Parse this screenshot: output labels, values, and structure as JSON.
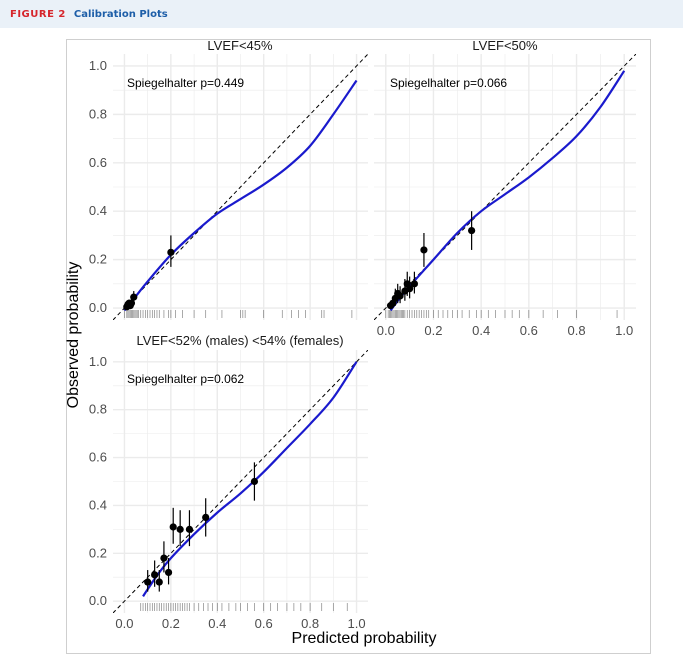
{
  "header": {
    "figure_label": "FIGURE 2",
    "title": "Calibration Plots"
  },
  "chart_data": [
    {
      "type": "scatter",
      "title": "LVEF<45%",
      "annotation": "Spiegelhalter p=0.449",
      "xlim": [
        0,
        1
      ],
      "ylim": [
        0,
        1
      ],
      "x_ticks": [],
      "y_ticks": [
        "0.0",
        "0.2",
        "0.4",
        "0.6",
        "0.8",
        "1.0"
      ],
      "points": [
        {
          "x": 0.01,
          "y": 0.005,
          "lo": 0.0,
          "hi": 0.02
        },
        {
          "x": 0.015,
          "y": 0.015,
          "lo": 0.0,
          "hi": 0.03
        },
        {
          "x": 0.02,
          "y": 0.02,
          "lo": 0.0,
          "hi": 0.035
        },
        {
          "x": 0.025,
          "y": 0.01,
          "lo": 0.0,
          "hi": 0.03
        },
        {
          "x": 0.03,
          "y": 0.02,
          "lo": 0.005,
          "hi": 0.04
        },
        {
          "x": 0.04,
          "y": 0.045,
          "lo": 0.02,
          "hi": 0.07
        },
        {
          "x": 0.2,
          "y": 0.23,
          "lo": 0.17,
          "hi": 0.3
        }
      ],
      "smooth": [
        [
          0.0,
          -0.01
        ],
        [
          0.05,
          0.05
        ],
        [
          0.1,
          0.11
        ],
        [
          0.2,
          0.22
        ],
        [
          0.3,
          0.31
        ],
        [
          0.4,
          0.39
        ],
        [
          0.5,
          0.45
        ],
        [
          0.6,
          0.51
        ],
        [
          0.7,
          0.58
        ],
        [
          0.8,
          0.67
        ],
        [
          0.9,
          0.8
        ],
        [
          1.0,
          0.94
        ]
      ],
      "rug": [
        0.0,
        0.01,
        0.015,
        0.02,
        0.025,
        0.03,
        0.035,
        0.04,
        0.045,
        0.05,
        0.055,
        0.06,
        0.07,
        0.08,
        0.09,
        0.1,
        0.11,
        0.12,
        0.13,
        0.14,
        0.15,
        0.17,
        0.19,
        0.2,
        0.22,
        0.25,
        0.3,
        0.35,
        0.42,
        0.5,
        0.51,
        0.52,
        0.6,
        0.68,
        0.72,
        0.75,
        0.78,
        0.85,
        0.86,
        0.98
      ]
    },
    {
      "type": "scatter",
      "title": "LVEF<50%",
      "annotation": "Spiegelhalter p=0.066",
      "xlim": [
        0,
        1
      ],
      "ylim": [
        0,
        1
      ],
      "x_ticks": [
        "0.0",
        "0.2",
        "0.4",
        "0.6",
        "0.8",
        "1.0"
      ],
      "y_ticks": [],
      "points": [
        {
          "x": 0.02,
          "y": 0.01,
          "lo": 0.0,
          "hi": 0.03
        },
        {
          "x": 0.03,
          "y": 0.02,
          "lo": 0.0,
          "hi": 0.04
        },
        {
          "x": 0.04,
          "y": 0.04,
          "lo": 0.01,
          "hi": 0.08
        },
        {
          "x": 0.05,
          "y": 0.06,
          "lo": 0.02,
          "hi": 0.1
        },
        {
          "x": 0.06,
          "y": 0.05,
          "lo": 0.02,
          "hi": 0.09
        },
        {
          "x": 0.08,
          "y": 0.07,
          "lo": 0.03,
          "hi": 0.12
        },
        {
          "x": 0.09,
          "y": 0.1,
          "lo": 0.05,
          "hi": 0.15
        },
        {
          "x": 0.1,
          "y": 0.08,
          "lo": 0.04,
          "hi": 0.13
        },
        {
          "x": 0.12,
          "y": 0.1,
          "lo": 0.06,
          "hi": 0.15
        },
        {
          "x": 0.16,
          "y": 0.24,
          "lo": 0.17,
          "hi": 0.31
        },
        {
          "x": 0.36,
          "y": 0.32,
          "lo": 0.24,
          "hi": 0.4
        }
      ],
      "smooth": [
        [
          0.02,
          -0.01
        ],
        [
          0.05,
          0.03
        ],
        [
          0.1,
          0.09
        ],
        [
          0.2,
          0.2
        ],
        [
          0.3,
          0.31
        ],
        [
          0.4,
          0.4
        ],
        [
          0.5,
          0.47
        ],
        [
          0.6,
          0.54
        ],
        [
          0.7,
          0.62
        ],
        [
          0.8,
          0.71
        ],
        [
          0.9,
          0.83
        ],
        [
          1.0,
          0.98
        ]
      ],
      "rug": [
        0.0,
        0.01,
        0.015,
        0.02,
        0.025,
        0.03,
        0.035,
        0.04,
        0.045,
        0.05,
        0.055,
        0.06,
        0.065,
        0.07,
        0.075,
        0.08,
        0.09,
        0.1,
        0.11,
        0.12,
        0.13,
        0.14,
        0.15,
        0.16,
        0.17,
        0.18,
        0.2,
        0.22,
        0.24,
        0.26,
        0.28,
        0.3,
        0.32,
        0.35,
        0.38,
        0.4,
        0.43,
        0.46,
        0.5,
        0.53,
        0.56,
        0.6,
        0.66,
        0.72,
        0.8,
        0.97
      ]
    },
    {
      "type": "scatter",
      "title": "LVEF<52% (males) <54% (females)",
      "annotation": "Spiegelhalter p=0.062",
      "xlim": [
        0,
        1
      ],
      "ylim": [
        0,
        1
      ],
      "x_ticks": [
        "0.0",
        "0.2",
        "0.4",
        "0.6",
        "0.8",
        "1.0"
      ],
      "y_ticks": [
        "0.0",
        "0.2",
        "0.4",
        "0.6",
        "0.8",
        "1.0"
      ],
      "points": [
        {
          "x": 0.1,
          "y": 0.08,
          "lo": 0.04,
          "hi": 0.13
        },
        {
          "x": 0.13,
          "y": 0.11,
          "lo": 0.06,
          "hi": 0.17
        },
        {
          "x": 0.15,
          "y": 0.08,
          "lo": 0.04,
          "hi": 0.13
        },
        {
          "x": 0.17,
          "y": 0.18,
          "lo": 0.12,
          "hi": 0.25
        },
        {
          "x": 0.19,
          "y": 0.12,
          "lo": 0.07,
          "hi": 0.18
        },
        {
          "x": 0.21,
          "y": 0.31,
          "lo": 0.24,
          "hi": 0.39
        },
        {
          "x": 0.24,
          "y": 0.3,
          "lo": 0.23,
          "hi": 0.38
        },
        {
          "x": 0.28,
          "y": 0.3,
          "lo": 0.23,
          "hi": 0.38
        },
        {
          "x": 0.35,
          "y": 0.35,
          "lo": 0.27,
          "hi": 0.43
        },
        {
          "x": 0.56,
          "y": 0.5,
          "lo": 0.42,
          "hi": 0.58
        }
      ],
      "smooth": [
        [
          0.08,
          0.02
        ],
        [
          0.1,
          0.05
        ],
        [
          0.15,
          0.12
        ],
        [
          0.2,
          0.18
        ],
        [
          0.3,
          0.28
        ],
        [
          0.4,
          0.37
        ],
        [
          0.5,
          0.45
        ],
        [
          0.6,
          0.54
        ],
        [
          0.7,
          0.64
        ],
        [
          0.8,
          0.74
        ],
        [
          0.9,
          0.85
        ],
        [
          1.0,
          1.0
        ]
      ],
      "rug": [
        0.07,
        0.08,
        0.09,
        0.1,
        0.11,
        0.12,
        0.13,
        0.14,
        0.15,
        0.16,
        0.17,
        0.18,
        0.19,
        0.2,
        0.21,
        0.22,
        0.23,
        0.24,
        0.25,
        0.26,
        0.27,
        0.28,
        0.3,
        0.32,
        0.34,
        0.36,
        0.38,
        0.4,
        0.42,
        0.45,
        0.48,
        0.5,
        0.53,
        0.56,
        0.6,
        0.63,
        0.66,
        0.7,
        0.73,
        0.76,
        0.8,
        0.85,
        0.9,
        0.96
      ]
    }
  ],
  "axes": {
    "xlabel": "Predicted probability",
    "ylabel": "Observed probability"
  },
  "colors": {
    "smooth_line": "#1a1acd",
    "points": "#000000",
    "grid": "#ebebeb",
    "header_bg": "#eaf1f8",
    "figure_label": "#d6262c",
    "title": "#1d5ea8"
  }
}
